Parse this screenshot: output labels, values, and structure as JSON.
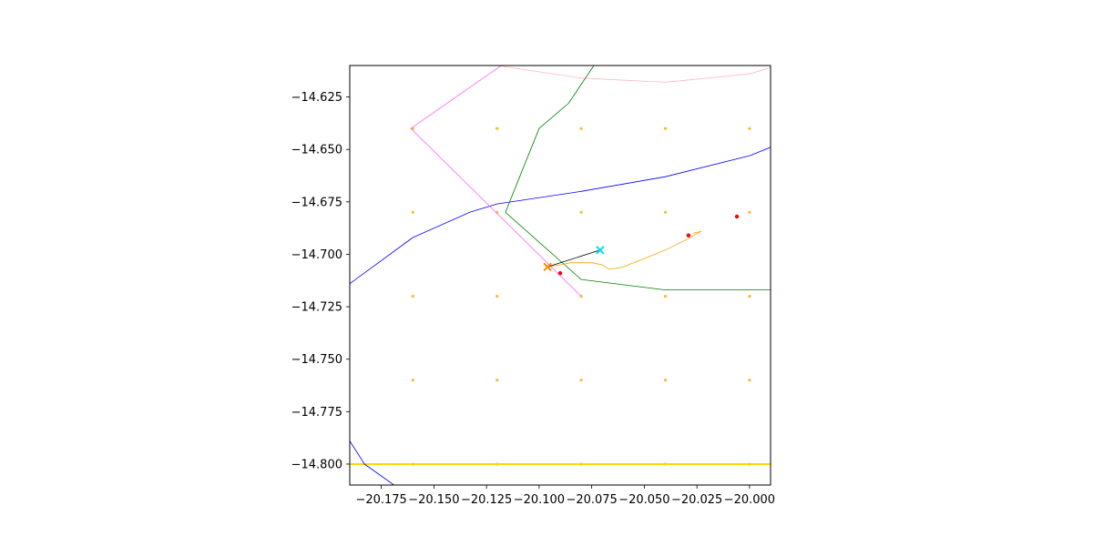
{
  "chart_data": {
    "type": "scatter",
    "title": "",
    "xlabel": "",
    "ylabel": "",
    "xlim": [
      -20.19,
      -19.99
    ],
    "ylim": [
      -14.81,
      -14.61
    ],
    "grid": false,
    "x_ticks": [
      -20.175,
      -20.15,
      -20.125,
      -20.1,
      -20.075,
      -20.05,
      -20.025,
      -20.0
    ],
    "x_tick_labels": [
      "−20.175",
      "−20.150",
      "−20.125",
      "−20.100",
      "−20.075",
      "−20.050",
      "−20.025",
      "−20.000"
    ],
    "y_ticks": [
      -14.625,
      -14.65,
      -14.675,
      -14.7,
      -14.725,
      -14.75,
      -14.775,
      -14.8
    ],
    "y_tick_labels": [
      "−14.625",
      "−14.650",
      "−14.675",
      "−14.700",
      "−14.725",
      "−14.750",
      "−14.775",
      "−14.800"
    ],
    "series": [
      {
        "kind": "points",
        "color": "#ffb732",
        "points": [
          [
            -20.16,
            -14.64
          ],
          [
            -20.12,
            -14.64
          ],
          [
            -20.08,
            -14.64
          ],
          [
            -20.04,
            -14.64
          ],
          [
            -20.0,
            -14.64
          ],
          [
            -20.16,
            -14.68
          ],
          [
            -20.12,
            -14.68
          ],
          [
            -20.08,
            -14.68
          ],
          [
            -20.04,
            -14.68
          ],
          [
            -20.0,
            -14.68
          ],
          [
            -20.16,
            -14.72
          ],
          [
            -20.12,
            -14.72
          ],
          [
            -20.08,
            -14.72
          ],
          [
            -20.04,
            -14.72
          ],
          [
            -20.0,
            -14.72
          ],
          [
            -20.16,
            -14.76
          ],
          [
            -20.12,
            -14.76
          ],
          [
            -20.08,
            -14.76
          ],
          [
            -20.04,
            -14.76
          ],
          [
            -20.0,
            -14.76
          ],
          [
            -20.16,
            -14.8
          ],
          [
            -20.12,
            -14.8
          ],
          [
            -20.08,
            -14.8
          ],
          [
            -20.04,
            -14.8
          ],
          [
            -20.0,
            -14.8
          ]
        ]
      },
      {
        "kind": "line",
        "color": "#ffd700",
        "width": 2,
        "points": [
          [
            -20.19,
            -14.8
          ],
          [
            -19.99,
            -14.8
          ]
        ]
      },
      {
        "kind": "line",
        "color": "#0000ff",
        "width": 0.8,
        "points": [
          [
            -20.19,
            -14.714
          ],
          [
            -20.16,
            -14.692
          ],
          [
            -20.133,
            -14.68
          ],
          [
            -20.12,
            -14.676
          ],
          [
            -20.08,
            -14.67
          ],
          [
            -20.04,
            -14.663
          ],
          [
            -20.0,
            -14.653
          ],
          [
            -19.99,
            -14.649
          ]
        ]
      },
      {
        "kind": "line",
        "color": "#0000ff",
        "width": 0.8,
        "points": [
          [
            -20.19,
            -14.789
          ],
          [
            -20.183,
            -14.8
          ],
          [
            -20.169,
            -14.81
          ]
        ]
      },
      {
        "kind": "line",
        "color": "#ff66ff",
        "width": 0.8,
        "points": [
          [
            -20.118,
            -14.61
          ],
          [
            -20.161,
            -14.64
          ],
          [
            -20.08,
            -14.72
          ]
        ]
      },
      {
        "kind": "line",
        "color": "#ffb6c1",
        "width": 0.8,
        "points": [
          [
            -20.12,
            -14.61
          ],
          [
            -20.08,
            -14.616
          ],
          [
            -20.04,
            -14.618
          ],
          [
            -20.0,
            -14.614
          ],
          [
            -19.99,
            -14.611
          ]
        ]
      },
      {
        "kind": "line",
        "color": "#008000",
        "width": 0.8,
        "points": [
          [
            -20.074,
            -14.61
          ],
          [
            -20.086,
            -14.628
          ],
          [
            -20.1,
            -14.64
          ],
          [
            -20.116,
            -14.68
          ],
          [
            -20.08,
            -14.712
          ],
          [
            -20.04,
            -14.717
          ],
          [
            -20.0,
            -14.717
          ],
          [
            -19.99,
            -14.717
          ]
        ]
      },
      {
        "kind": "line",
        "color": "#ffa500",
        "width": 0.8,
        "points": [
          [
            -20.096,
            -14.706
          ],
          [
            -20.09,
            -14.705
          ],
          [
            -20.085,
            -14.704
          ],
          [
            -20.08,
            -14.704
          ],
          [
            -20.075,
            -14.704
          ],
          [
            -20.07,
            -14.705
          ],
          [
            -20.067,
            -14.707
          ],
          [
            -20.065,
            -14.707
          ],
          [
            -20.06,
            -14.706
          ],
          [
            -20.05,
            -14.702
          ],
          [
            -20.04,
            -14.698
          ],
          [
            -20.03,
            -14.693
          ],
          [
            -20.023,
            -14.689
          ],
          [
            -20.027,
            -14.69
          ]
        ]
      },
      {
        "kind": "line",
        "color": "#000000",
        "width": 0.8,
        "points": [
          [
            -20.096,
            -14.706
          ],
          [
            -20.071,
            -14.698
          ]
        ]
      },
      {
        "kind": "points",
        "color": "#ff0000",
        "size": 2.2,
        "points": [
          [
            -20.09,
            -14.709
          ],
          [
            -20.029,
            -14.691
          ],
          [
            -20.006,
            -14.682
          ]
        ]
      },
      {
        "kind": "marker",
        "marker": "x",
        "color": "#00dddd",
        "points": [
          [
            -20.071,
            -14.698
          ]
        ]
      },
      {
        "kind": "marker",
        "marker": "x",
        "color": "#ff8c00",
        "points": [
          [
            -20.096,
            -14.706
          ]
        ]
      }
    ]
  }
}
